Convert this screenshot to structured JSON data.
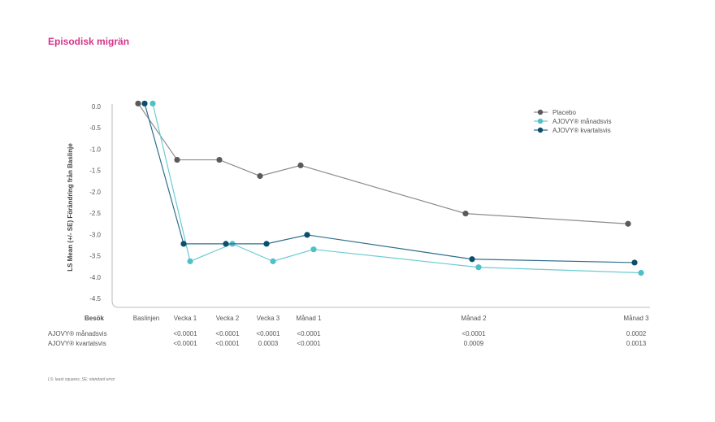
{
  "title": "Episodisk migrän",
  "footnote": "LS: least squares; SE: standard error",
  "chart_data": {
    "type": "line",
    "ylabel": "LS Mean (+/- SE) Förändring från Baslinje",
    "xlabel": "Besök",
    "ylim": [
      -4.5,
      0
    ],
    "yticks": [
      "0.0",
      "-0.5",
      "-1.0",
      "-1.5",
      "-2.0",
      "-2.5",
      "-3.0",
      "-3.5",
      "-4.0",
      "-4.5"
    ],
    "ytick_values": [
      0,
      -0.5,
      -1,
      -1.5,
      -2,
      -2.5,
      -3,
      -3.5,
      -4,
      -4.5
    ],
    "categories": [
      "Baslinjen",
      "Vecka 1",
      "Vecka 2",
      "Vecka 3",
      "Månad 1",
      "Månad 2",
      "Månad 3"
    ],
    "x": [
      0,
      1,
      2,
      3,
      4,
      8,
      12
    ],
    "legend_position": "top-right",
    "series": [
      {
        "name": "Placebo",
        "color": "#5a5a5a",
        "line_color": "#8c8c8c",
        "x": [
          0,
          1,
          2,
          3,
          4,
          8,
          12
        ],
        "values": [
          0.07,
          -1.25,
          -1.25,
          -1.63,
          -1.38,
          -2.51,
          -2.75
        ]
      },
      {
        "name": "AJOVY® månadsvis",
        "color": "#4fc0c8",
        "line_color": "#6ccbd1",
        "x": [
          0,
          1,
          2,
          3,
          4,
          8,
          12
        ],
        "values": [
          0.07,
          -3.63,
          -3.22,
          -3.63,
          -3.35,
          -3.77,
          -3.9
        ]
      },
      {
        "name": "AJOVY® kvartalsvis",
        "color": "#0b4f6c",
        "line_color": "#2f6e8c",
        "x": [
          0,
          1,
          2,
          3,
          4,
          8,
          12
        ],
        "values": [
          0.07,
          -3.22,
          -3.22,
          -3.22,
          -3.01,
          -3.58,
          -3.66
        ]
      }
    ],
    "pvalue_rows": [
      {
        "label": "AJOVY® månadsvis",
        "values": [
          "",
          "<0.0001",
          "<0.0001",
          "<0.0001",
          "<0.0001",
          "<0.0001",
          "0.0002"
        ]
      },
      {
        "label": "AJOVY® kvartalsvis",
        "values": [
          "",
          "<0.0001",
          "<0.0001",
          "0.0003",
          "<0.0001",
          "0.0009",
          "0.0013"
        ]
      }
    ]
  }
}
